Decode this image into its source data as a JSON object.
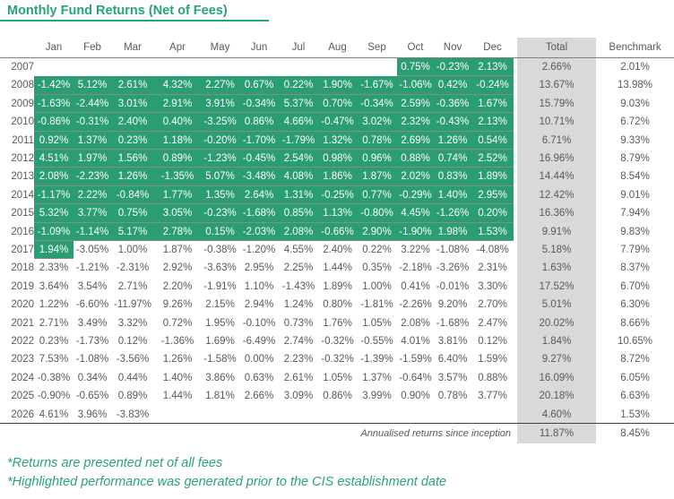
{
  "title": "Monthly Fund Returns (Net of Fees)",
  "colors": {
    "accent": "#2aa27a",
    "highlight": "#2a9d72",
    "total_bg": "#d9d9d9"
  },
  "headers": [
    "Jan",
    "Feb",
    "Mar",
    "Apr",
    "May",
    "Jun",
    "Jul",
    "Aug",
    "Sep",
    "Oct",
    "Nov",
    "Dec",
    "Total",
    "Benchmark"
  ],
  "rows": [
    {
      "year": "2007",
      "months": [
        "",
        "",
        "",
        "",
        "",
        "",
        "",
        "",
        "",
        "0.75%",
        "-0.23%",
        "2.13%"
      ],
      "total": "2.66%",
      "benchmark": "2.01%",
      "hl": [
        9,
        11
      ]
    },
    {
      "year": "2008",
      "months": [
        "-1.42%",
        "5.12%",
        "2.61%",
        "4.32%",
        "2.27%",
        "0.67%",
        "0.22%",
        "1.90%",
        "-1.67%",
        "-1.06%",
        "0.42%",
        "-0.24%"
      ],
      "total": "13.67%",
      "benchmark": "13.98%",
      "hl": [
        0,
        11
      ]
    },
    {
      "year": "2009",
      "months": [
        "-1.63%",
        "-2.44%",
        "3.01%",
        "2.91%",
        "3.91%",
        "-0.34%",
        "5.37%",
        "0.70%",
        "-0.34%",
        "2.59%",
        "-0.36%",
        "1.67%"
      ],
      "total": "15.79%",
      "benchmark": "9.03%",
      "hl": [
        0,
        11
      ]
    },
    {
      "year": "2010",
      "months": [
        "-0.86%",
        "-0.31%",
        "2.40%",
        "0.40%",
        "-3.25%",
        "0.86%",
        "4.66%",
        "-0.47%",
        "3.02%",
        "2.32%",
        "-0.43%",
        "2.13%"
      ],
      "total": "10.71%",
      "benchmark": "6.72%",
      "hl": [
        0,
        11
      ]
    },
    {
      "year": "2011",
      "months": [
        "0.92%",
        "1.37%",
        "0.23%",
        "1.18%",
        "-0.20%",
        "-1.70%",
        "-1.79%",
        "1.32%",
        "0.78%",
        "2.69%",
        "1.26%",
        "0.54%"
      ],
      "total": "6.71%",
      "benchmark": "9.33%",
      "hl": [
        0,
        11
      ]
    },
    {
      "year": "2012",
      "months": [
        "4.51%",
        "1.97%",
        "1.56%",
        "0.89%",
        "-1.23%",
        "-0.45%",
        "2.54%",
        "0.98%",
        "0.96%",
        "0.88%",
        "0.74%",
        "2.52%"
      ],
      "total": "16.96%",
      "benchmark": "8.79%",
      "hl": [
        0,
        11
      ]
    },
    {
      "year": "2013",
      "months": [
        "2.08%",
        "-2.23%",
        "1.26%",
        "-1.35%",
        "5.07%",
        "-3.48%",
        "4.08%",
        "1.86%",
        "1.87%",
        "2.02%",
        "0.83%",
        "1.89%"
      ],
      "total": "14.44%",
      "benchmark": "8.54%",
      "hl": [
        0,
        11
      ]
    },
    {
      "year": "2014",
      "months": [
        "-1.17%",
        "2.22%",
        "-0.84%",
        "1.77%",
        "1.35%",
        "2.64%",
        "1.31%",
        "-0.25%",
        "0.77%",
        "-0.29%",
        "1.40%",
        "2.95%"
      ],
      "total": "12.42%",
      "benchmark": "9.01%",
      "hl": [
        0,
        11
      ]
    },
    {
      "year": "2015",
      "months": [
        "5.32%",
        "3.77%",
        "0.75%",
        "3.05%",
        "-0.23%",
        "-1.68%",
        "0.85%",
        "1.13%",
        "-0.80%",
        "4.45%",
        "-1.26%",
        "0.20%"
      ],
      "total": "16.36%",
      "benchmark": "7.94%",
      "hl": [
        0,
        11
      ]
    },
    {
      "year": "2016",
      "months": [
        "-1.09%",
        "-1.14%",
        "5.17%",
        "2.78%",
        "0.15%",
        "-2.03%",
        "2.08%",
        "-0.66%",
        "2.90%",
        "-1.90%",
        "1.98%",
        "1.53%"
      ],
      "total": "9.91%",
      "benchmark": "9.83%",
      "hl": [
        0,
        11
      ]
    },
    {
      "year": "2017",
      "months": [
        "1.94%",
        "-3.05%",
        "1.00%",
        "1.87%",
        "-0.38%",
        "-1.20%",
        "4.55%",
        "2.40%",
        "0.22%",
        "3.22%",
        "-1.08%",
        "-4.08%"
      ],
      "total": "5.18%",
      "benchmark": "7.79%",
      "hl": [
        0,
        0
      ]
    },
    {
      "year": "2018",
      "months": [
        "2.33%",
        "-1.21%",
        "-2.31%",
        "2.92%",
        "-3.63%",
        "2.95%",
        "2.25%",
        "1.44%",
        "0.35%",
        "-2.18%",
        "-3.26%",
        "2.31%"
      ],
      "total": "1.63%",
      "benchmark": "8.37%"
    },
    {
      "year": "2019",
      "months": [
        "3.64%",
        "3.54%",
        "2.71%",
        "2.20%",
        "-1.91%",
        "1.10%",
        "-1.43%",
        "1.89%",
        "1.00%",
        "0.41%",
        "-0.01%",
        "3.30%"
      ],
      "total": "17.52%",
      "benchmark": "6.70%"
    },
    {
      "year": "2020",
      "months": [
        "1.22%",
        "-6.60%",
        "-11.97%",
        "9.26%",
        "2.15%",
        "2.94%",
        "1.24%",
        "0.80%",
        "-1.81%",
        "-2.26%",
        "9.20%",
        "2.70%"
      ],
      "total": "5.01%",
      "benchmark": "6.30%"
    },
    {
      "year": "2021",
      "months": [
        "2.71%",
        "3.49%",
        "3.32%",
        "0.72%",
        "1.95%",
        "-0.10%",
        "0.73%",
        "1.76%",
        "1.05%",
        "2.08%",
        "-1.68%",
        "2.47%"
      ],
      "total": "20.02%",
      "benchmark": "8.66%"
    },
    {
      "year": "2022",
      "months": [
        "0.23%",
        "-1.73%",
        "0.12%",
        "-1.36%",
        "1.69%",
        "-6.49%",
        "2.74%",
        "-0.32%",
        "-0.55%",
        "4.01%",
        "3.81%",
        "0.12%"
      ],
      "total": "1.84%",
      "benchmark": "10.65%"
    },
    {
      "year": "2023",
      "months": [
        "7.53%",
        "-1.08%",
        "-3.56%",
        "1.26%",
        "-1.58%",
        "0.00%",
        "2.23%",
        "-0.32%",
        "-1.39%",
        "-1.59%",
        "6.40%",
        "1.59%"
      ],
      "total": "9.27%",
      "benchmark": "8.72%"
    },
    {
      "year": "2024",
      "months": [
        "-0.38%",
        "0.34%",
        "0.44%",
        "1.40%",
        "3.86%",
        "0.63%",
        "2.61%",
        "1.05%",
        "1.37%",
        "-0.64%",
        "3.57%",
        "0.88%"
      ],
      "total": "16.09%",
      "benchmark": "6.05%"
    },
    {
      "year": "2025",
      "months": [
        "-0.90%",
        "-0.65%",
        "0.89%",
        "1.44%",
        "1.81%",
        "2.66%",
        "3.09%",
        "0.86%",
        "3.99%",
        "0.90%",
        "0.78%",
        "3.77%"
      ],
      "total": "20.18%",
      "benchmark": "6.63%"
    },
    {
      "year": "2026",
      "months": [
        "4.61%",
        "3.96%",
        "-3.83%",
        "",
        "",
        "",
        "",
        "",
        "",
        "",
        "",
        ""
      ],
      "total": "4.60%",
      "benchmark": "1.53%"
    }
  ],
  "annualised": {
    "label": "Annualised returns since inception",
    "total": "11.87%",
    "benchmark": "8.45%"
  },
  "notes": [
    "*Returns are presented net of all fees",
    "*Highlighted performance was generated prior to the CIS establishment date"
  ]
}
